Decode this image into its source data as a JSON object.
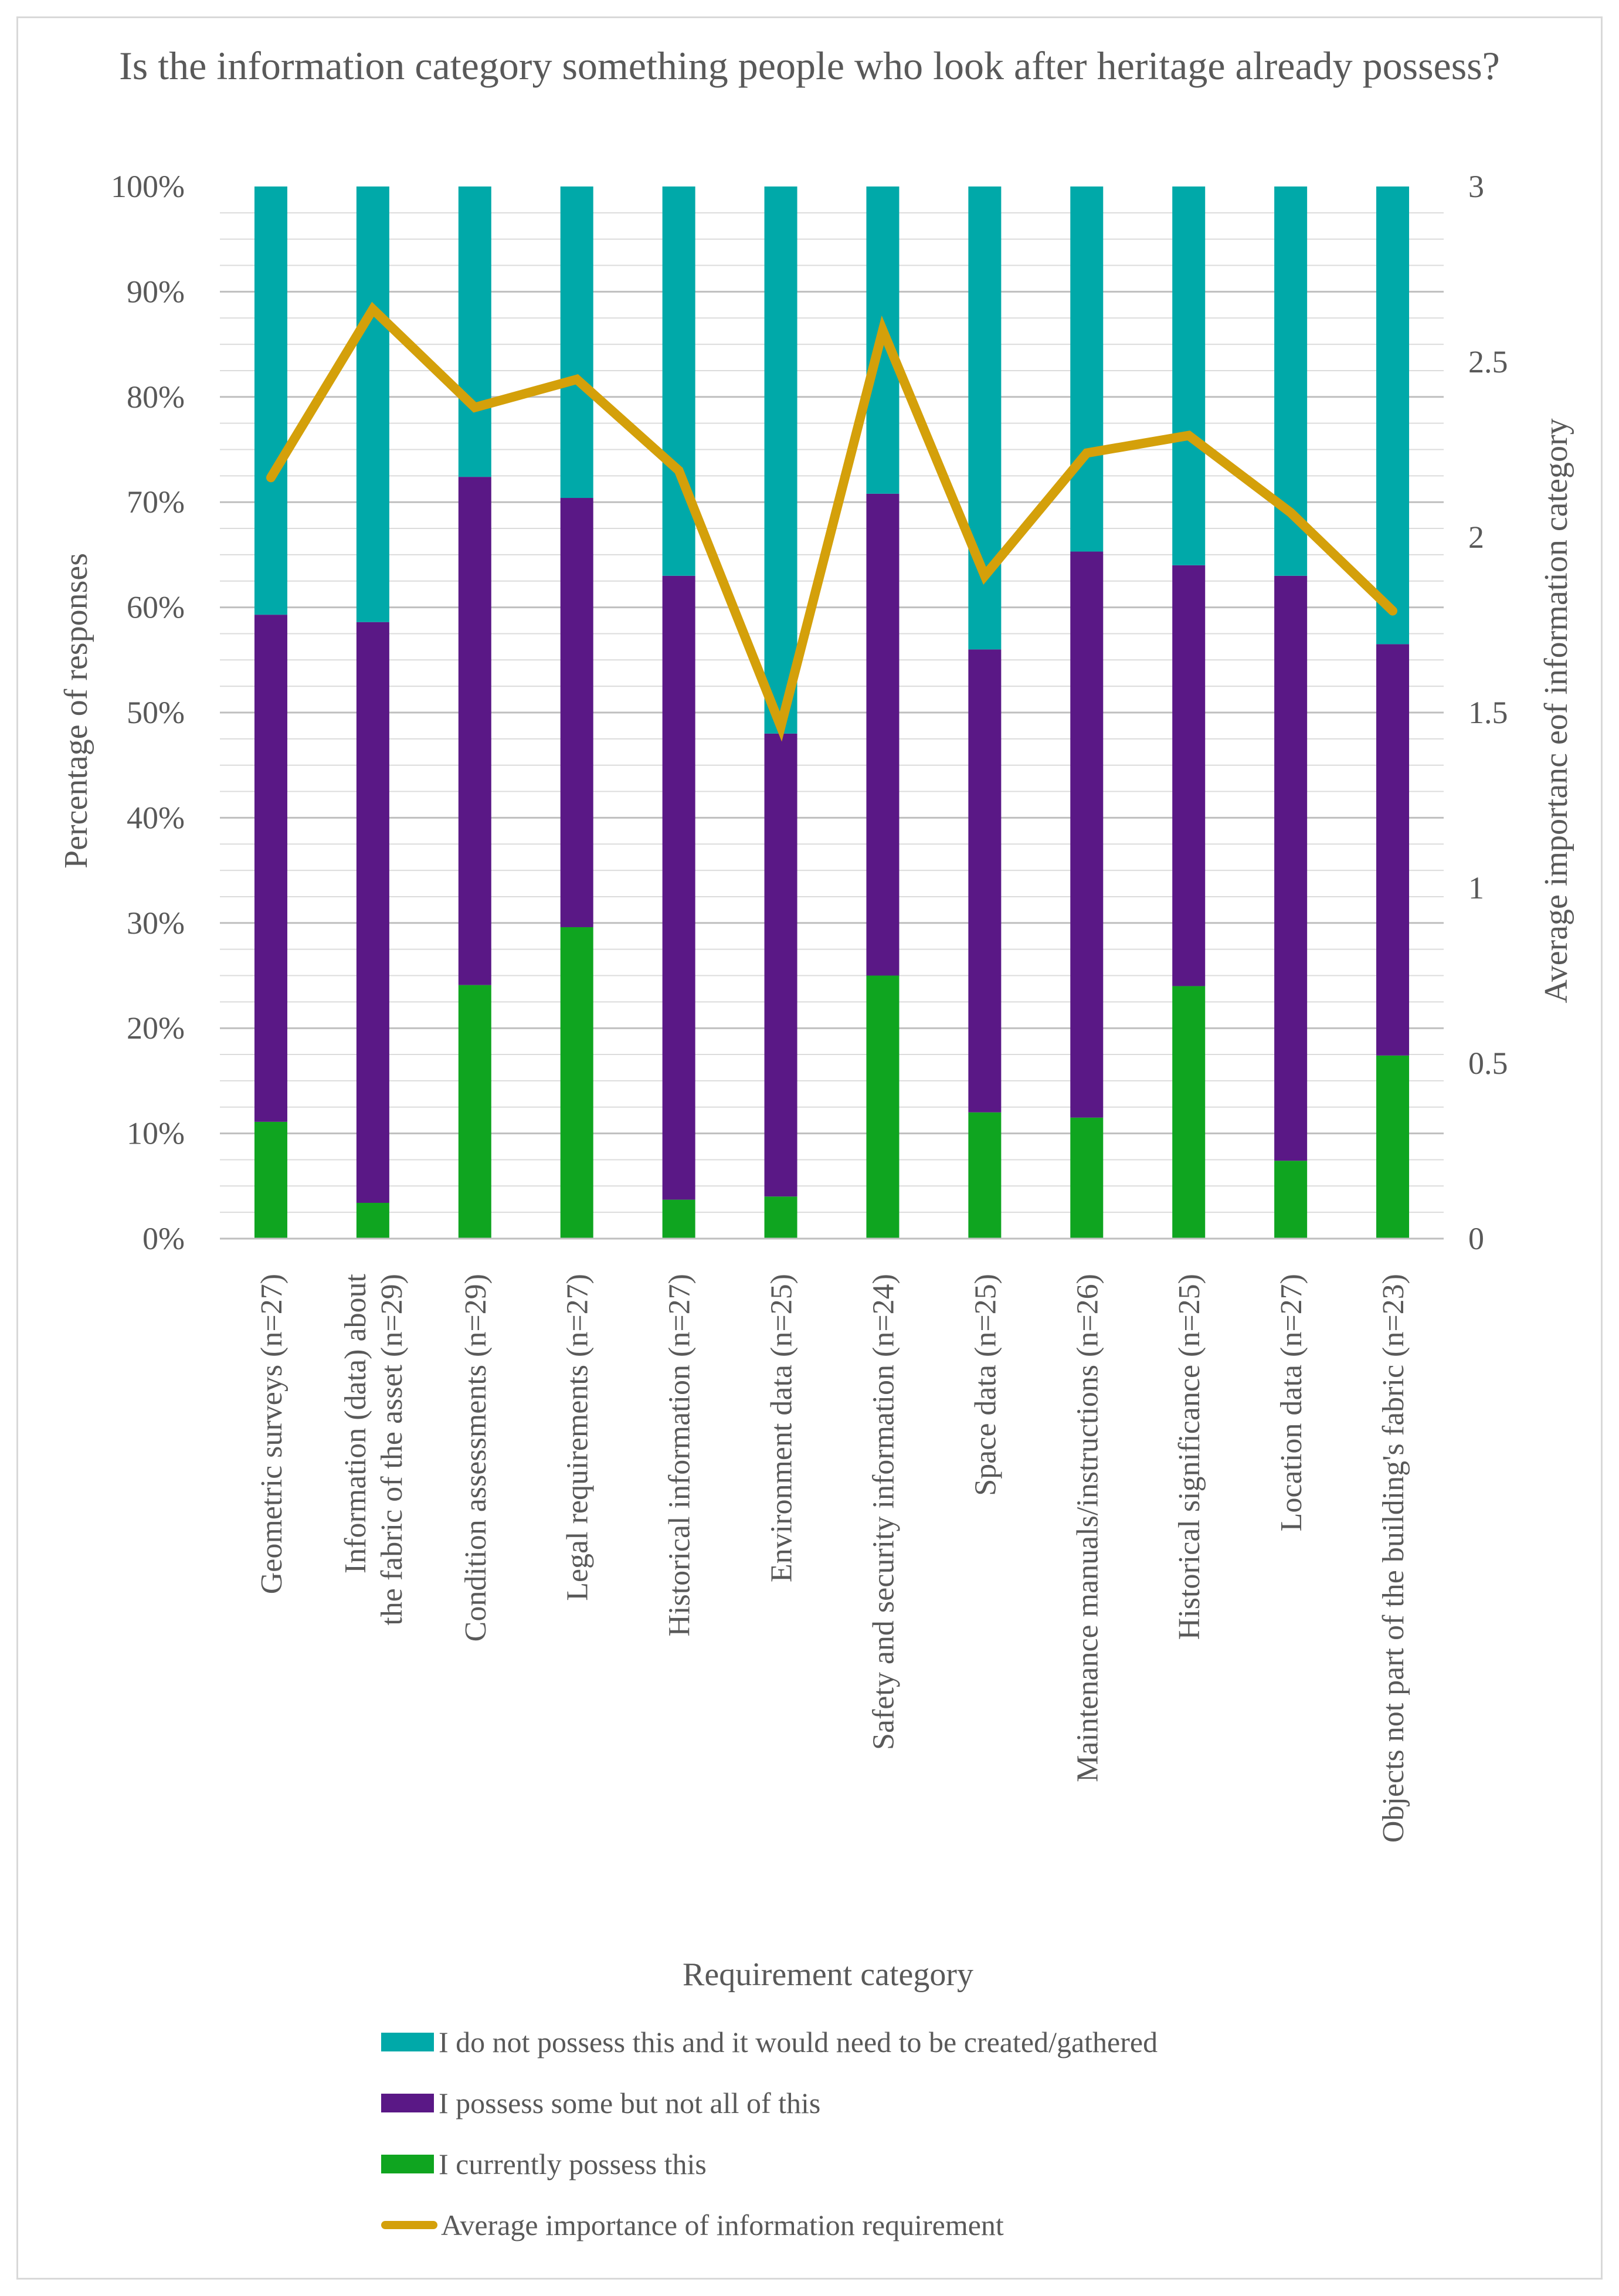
{
  "chart_data": {
    "type": "bar",
    "stacked": true,
    "title": "Is the information category something people  who look after heritage already possess?",
    "xlabel": "Requirement category",
    "ylabel": "Percentage of responses",
    "y2label": "Average importanc eof information category",
    "ylim": [
      0,
      100
    ],
    "y2lim": [
      0,
      3
    ],
    "yticks": [
      "0%",
      "10%",
      "20%",
      "30%",
      "40%",
      "50%",
      "60%",
      "70%",
      "80%",
      "90%",
      "100%"
    ],
    "y2ticks": [
      "0",
      "0.5",
      "1",
      "1.5",
      "2",
      "2.5",
      "3"
    ],
    "categories": [
      [
        "Geometric surveys (n=27)"
      ],
      [
        "Information (data) about",
        "the fabric of the asset (n=29)"
      ],
      [
        "Condition assessments (n=29)"
      ],
      [
        "Legal requirements (n=27)"
      ],
      [
        "Historical information (n=27)"
      ],
      [
        "Environment data (n=25)"
      ],
      [
        "Safety and security information (n=24)"
      ],
      [
        "Space data (n=25)"
      ],
      [
        "Maintenance manuals/instructions (n=26)"
      ],
      [
        "Historical significance (n=25)"
      ],
      [
        "Location data (n=27)"
      ],
      [
        "Objects not part of the building's fabric (n=23)"
      ]
    ],
    "series": [
      {
        "name": "I currently possess this",
        "color": "#0fa520",
        "values": [
          11.1,
          3.4,
          24.1,
          29.6,
          3.7,
          4.0,
          25.0,
          12.0,
          11.5,
          24.0,
          7.4,
          17.4
        ]
      },
      {
        "name": "I possess some but not all of this",
        "color": "#5a1886",
        "values": [
          48.2,
          55.2,
          48.3,
          40.8,
          59.3,
          44.0,
          45.8,
          44.0,
          53.8,
          40.0,
          55.6,
          39.1
        ]
      },
      {
        "name": "I do not possess this and it would need to be created/gathered",
        "color": "#00a9a9",
        "values": [
          40.7,
          41.4,
          27.6,
          29.6,
          37.0,
          52.0,
          29.2,
          44.0,
          34.7,
          36.0,
          37.0,
          43.5
        ]
      }
    ],
    "line_series": {
      "name": "Average importance of information requirement",
      "color": "#d4a00a",
      "axis": "secondary",
      "values": [
        2.17,
        2.65,
        2.37,
        2.45,
        2.19,
        1.46,
        2.59,
        1.89,
        2.24,
        2.29,
        2.07,
        1.79
      ]
    },
    "legend": {
      "position": "bottom",
      "entries": [
        "I do not possess this and it would need to be created/gathered",
        "I possess some but not all of this",
        "I currently possess this",
        "Average importance of information requirement"
      ]
    }
  }
}
